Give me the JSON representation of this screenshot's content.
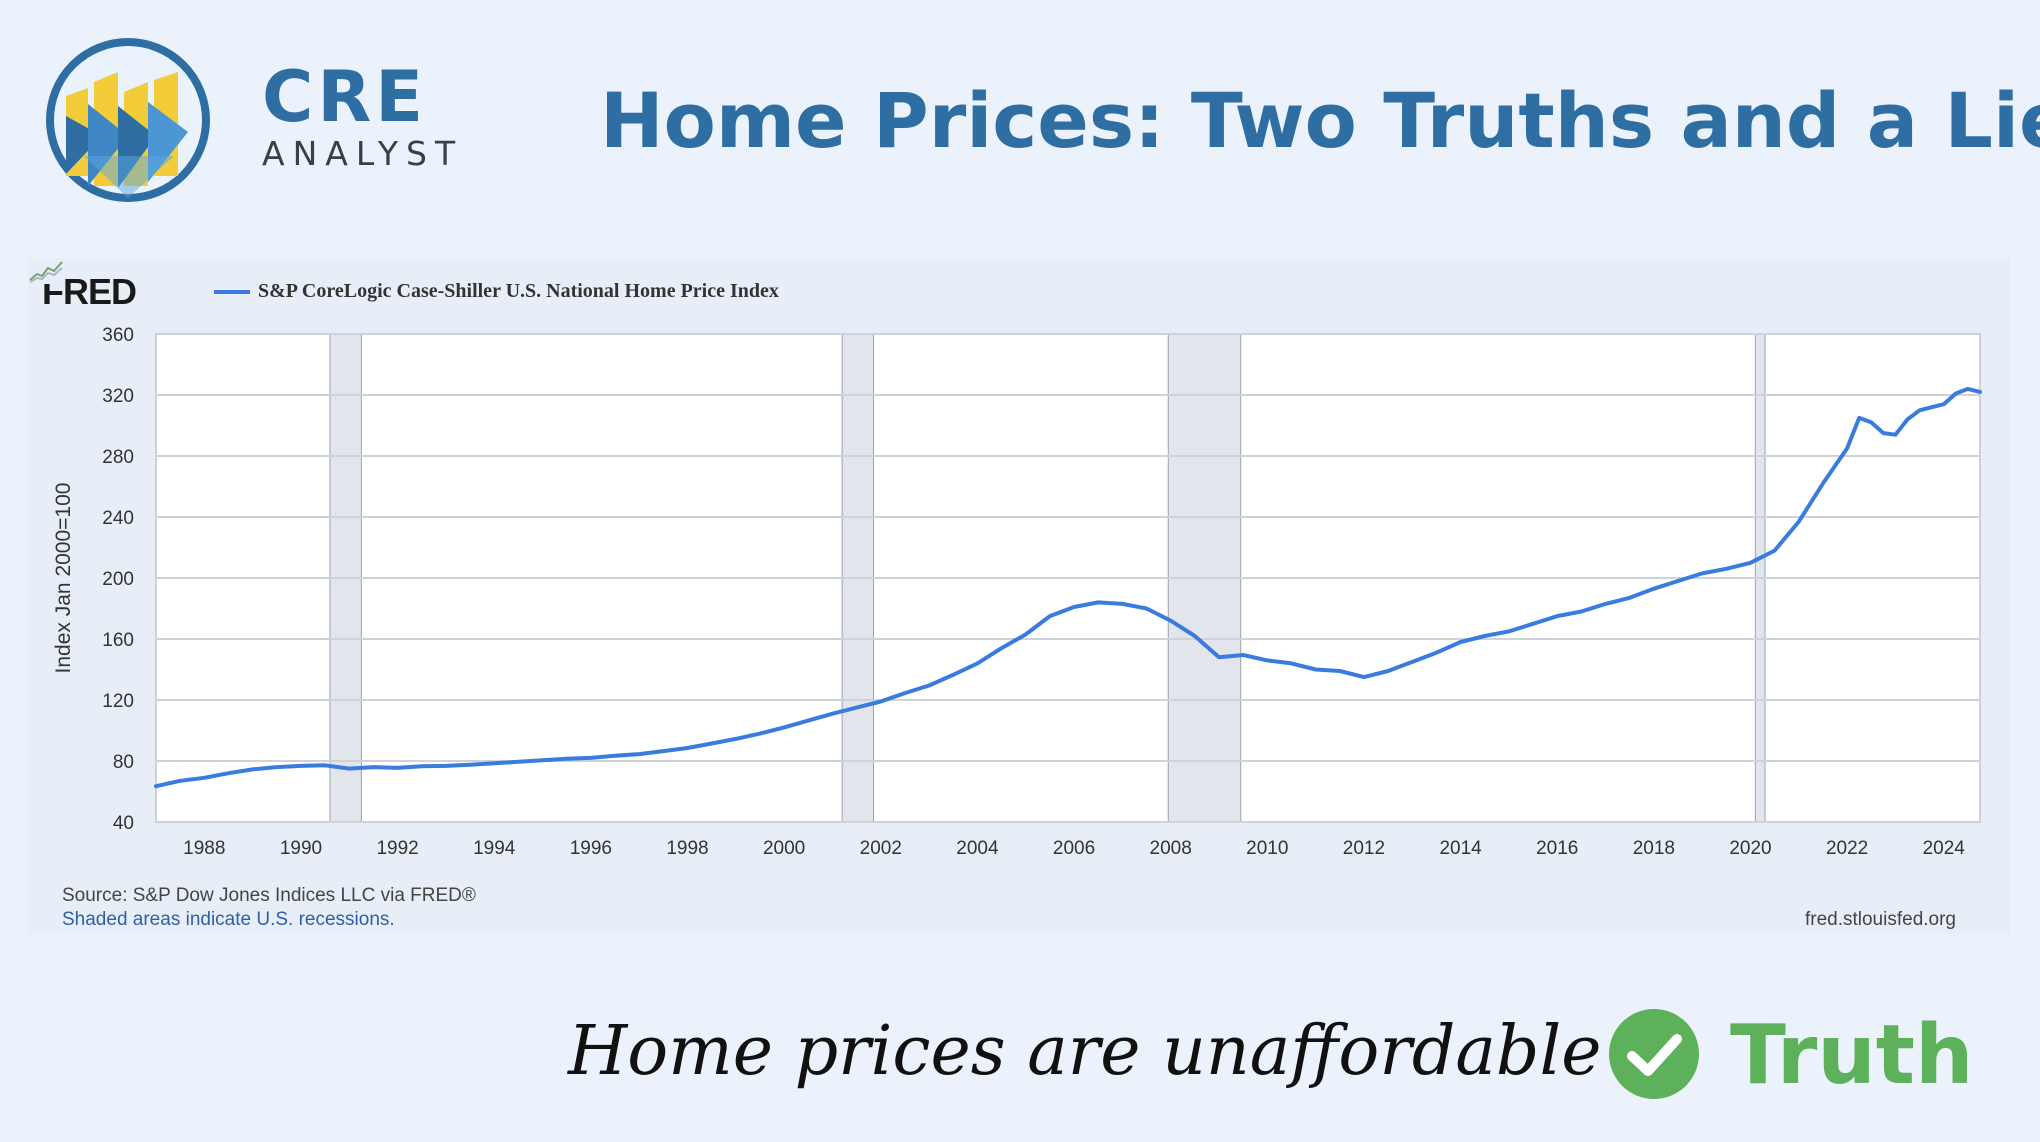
{
  "brand": {
    "line1": "CRE",
    "line2": "ANALYST"
  },
  "header": {
    "title": "Home Prices: Two Truths and a Lie"
  },
  "fred": {
    "logo_text": "FRED",
    "source": "Source: S&P Dow Jones Indices LLC via FRED®",
    "recession_note": "Shaded areas indicate U.S. recessions.",
    "url": "fred.stlouisfed.org"
  },
  "claim": {
    "text": "Home prices are unaffordable",
    "verdict": "Truth",
    "verdict_icon": "check-circle-icon",
    "verdict_color": "#5cb15a"
  },
  "colors": {
    "accent": "#2f6ea3",
    "series": "#3a7be0",
    "recession": "#e2e6ec"
  },
  "chart_data": {
    "type": "line",
    "title": "",
    "xlabel": "",
    "ylabel": "Index Jan 2000=100",
    "xlim": [
      1987.0,
      2024.75
    ],
    "ylim": [
      40,
      360
    ],
    "yticks": [
      40,
      80,
      120,
      160,
      200,
      240,
      280,
      320,
      360
    ],
    "xticks": [
      1988,
      1990,
      1992,
      1994,
      1996,
      1998,
      2000,
      2002,
      2004,
      2006,
      2008,
      2010,
      2012,
      2014,
      2016,
      2018,
      2020,
      2022,
      2024
    ],
    "grid": true,
    "legend": "top-left",
    "recessions": [
      [
        1990.6,
        1991.25
      ],
      [
        2001.2,
        2001.85
      ],
      [
        2007.95,
        2009.45
      ],
      [
        2020.1,
        2020.3
      ]
    ],
    "series": [
      {
        "name": "S&P CoreLogic Case-Shiller U.S. National Home Price Index",
        "x": [
          1987.0,
          1987.5,
          1988.0,
          1988.5,
          1989.0,
          1989.5,
          1990.0,
          1990.5,
          1991.0,
          1991.5,
          1992.0,
          1992.5,
          1993.0,
          1993.5,
          1994.0,
          1994.5,
          1995.0,
          1995.5,
          1996.0,
          1996.5,
          1997.0,
          1997.5,
          1998.0,
          1998.5,
          1999.0,
          1999.5,
          2000.0,
          2000.5,
          2001.0,
          2001.5,
          2002.0,
          2002.5,
          2003.0,
          2003.5,
          2004.0,
          2004.5,
          2005.0,
          2005.5,
          2006.0,
          2006.5,
          2007.0,
          2007.5,
          2008.0,
          2008.5,
          2009.0,
          2009.5,
          2010.0,
          2010.5,
          2011.0,
          2011.5,
          2012.0,
          2012.5,
          2013.0,
          2013.5,
          2014.0,
          2014.5,
          2015.0,
          2015.5,
          2016.0,
          2016.5,
          2017.0,
          2017.5,
          2018.0,
          2018.5,
          2019.0,
          2019.5,
          2020.0,
          2020.5,
          2021.0,
          2021.5,
          2022.0,
          2022.25,
          2022.5,
          2022.75,
          2023.0,
          2023.25,
          2023.5,
          2023.75,
          2024.0,
          2024.25,
          2024.5,
          2024.75
        ],
        "values": [
          63.5,
          67,
          69,
          72,
          74.5,
          76,
          76.8,
          77.2,
          75,
          76,
          75.5,
          76.5,
          76.8,
          77.5,
          78.5,
          79.5,
          80.5,
          81.5,
          82,
          83.5,
          84.5,
          86.5,
          88.5,
          91.5,
          94.5,
          98,
          102,
          106.5,
          111,
          115,
          119,
          124.5,
          129.5,
          136.5,
          144,
          154,
          163,
          175,
          181,
          184,
          183,
          180,
          172,
          162,
          148,
          149.5,
          146,
          144,
          140,
          139,
          135,
          139,
          145,
          151,
          158,
          162,
          165,
          170,
          175,
          178,
          183,
          187,
          193,
          198,
          203,
          206,
          210,
          218,
          237,
          262,
          285,
          305,
          302,
          295,
          294,
          304,
          310,
          312,
          314,
          321,
          324,
          322
        ]
      }
    ]
  }
}
